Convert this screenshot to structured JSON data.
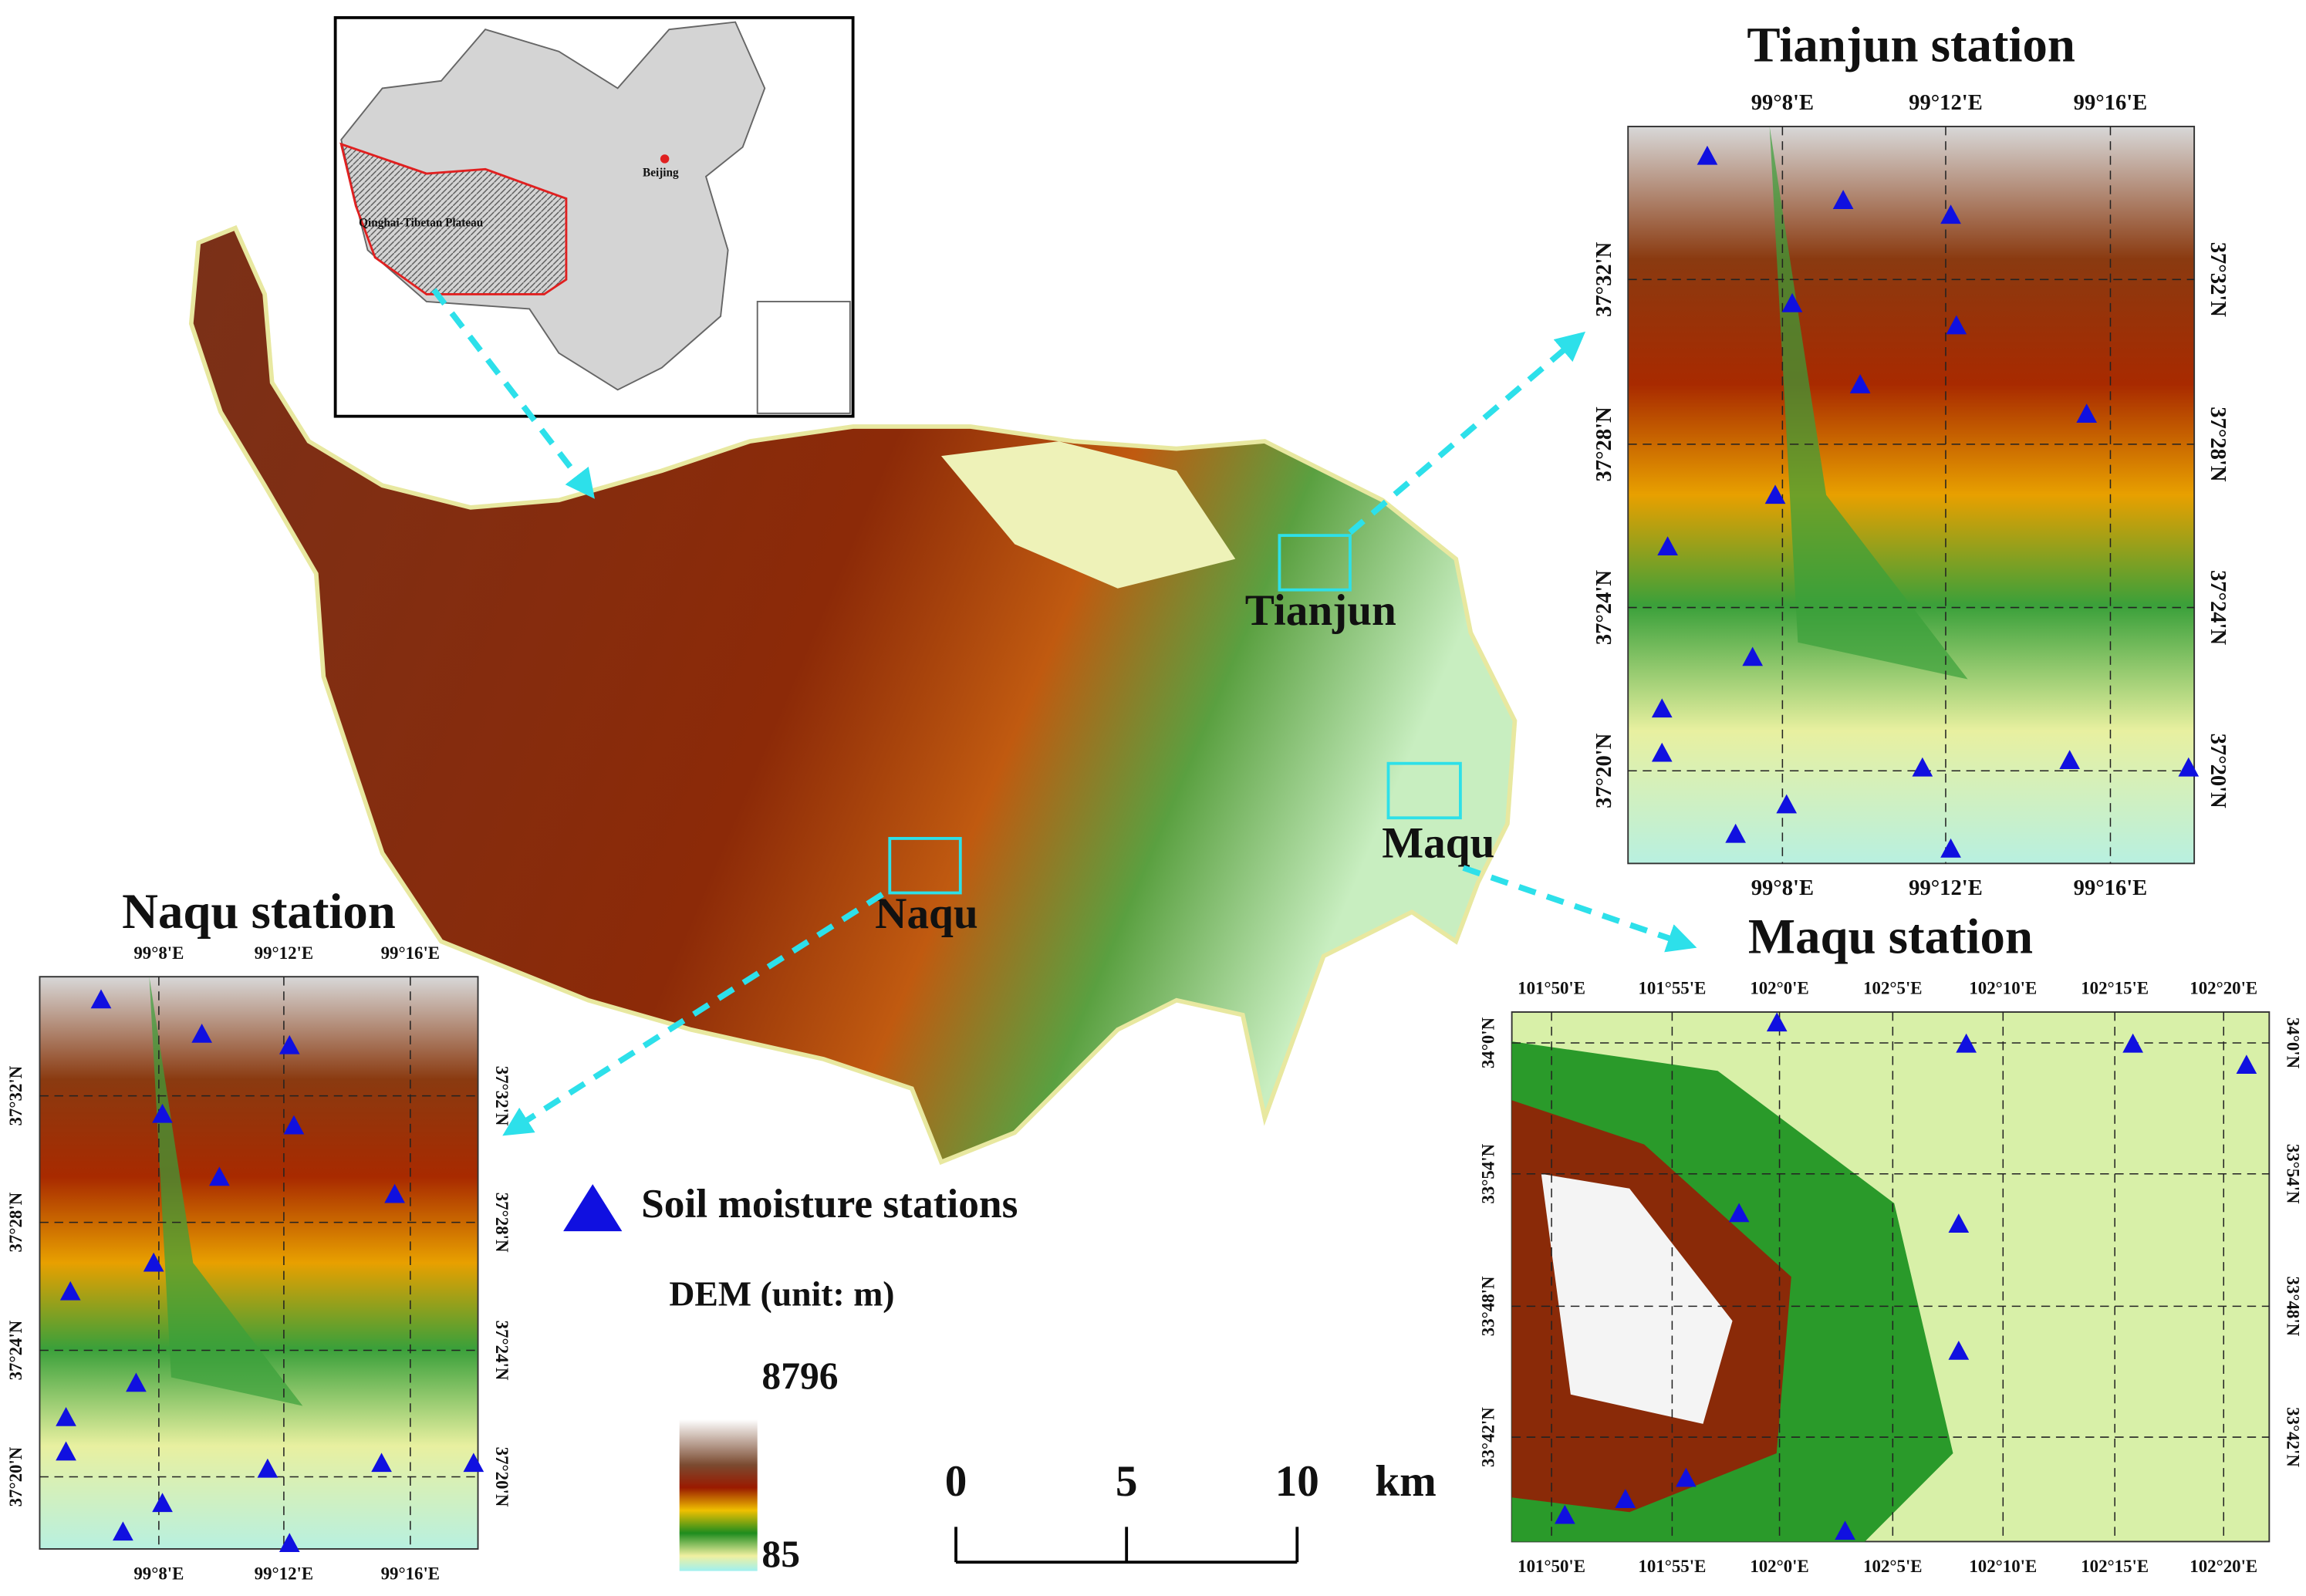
{
  "inset": {
    "region_label": "Qinghai-Tibetan Plateau",
    "city_label": "Beijing"
  },
  "main_map": {
    "site_labels": [
      "Tianjun",
      "Maqu",
      "Naqu"
    ]
  },
  "panels": {
    "tianjun": {
      "title": "Tianjun station",
      "lon_ticks": [
        "99°8'E",
        "99°12'E",
        "99°16'E"
      ],
      "lat_ticks": [
        "37°32'N",
        "37°28'N",
        "37°24'N",
        "37°20'N"
      ]
    },
    "naqu": {
      "title": "Naqu station",
      "lon_ticks": [
        "99°8'E",
        "99°12'E",
        "99°16'E"
      ],
      "lat_ticks": [
        "37°32'N",
        "37°28'N",
        "37°24'N",
        "37°20'N"
      ]
    },
    "maqu": {
      "title": "Maqu station",
      "lon_ticks": [
        "101°50'E",
        "101°55'E",
        "102°0'E",
        "102°5'E",
        "102°10'E",
        "102°15'E",
        "102°20'E"
      ],
      "lat_ticks": [
        "34°0'N",
        "33°54'N",
        "33°48'N",
        "33°42'N"
      ]
    }
  },
  "legend": {
    "stations": "Soil moisture stations"
  },
  "dem": {
    "title": "DEM (unit: m)",
    "max": 8796,
    "min": 85
  },
  "scale_bar": {
    "ticks": [
      0,
      5,
      10
    ],
    "unit": "km"
  }
}
